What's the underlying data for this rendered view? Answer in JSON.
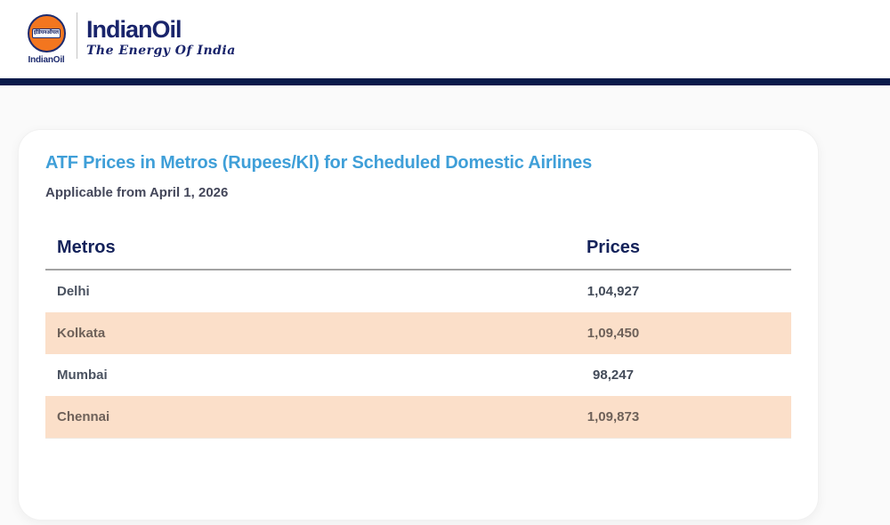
{
  "brand": {
    "emblem_hindi": "इंडियनऑयल",
    "emblem_label": "IndianOil",
    "wordmark": "IndianOil",
    "tagline": "The Energy Of India"
  },
  "colors": {
    "brand_navy": "#19246b",
    "brand_orange": "#f3761f",
    "divider_bar_navy": "#0a1a4a",
    "title_blue": "#3f9fd8",
    "highlight_peach": "#fbdfc9",
    "header_text_navy": "#14225a"
  },
  "card": {
    "title": "ATF Prices in Metros (Rupees/Kl) for Scheduled Domestic Airlines",
    "subtitle": "Applicable from April 1, 2026"
  },
  "table": {
    "columns": [
      "Metros",
      "Prices"
    ],
    "rows": [
      {
        "metro": "Delhi",
        "price": "1,04,927",
        "highlighted": false
      },
      {
        "metro": "Kolkata",
        "price": "1,09,450",
        "highlighted": true
      },
      {
        "metro": "Mumbai",
        "price": "98,247",
        "highlighted": false
      },
      {
        "metro": "Chennai",
        "price": "1,09,873",
        "highlighted": true
      }
    ]
  }
}
